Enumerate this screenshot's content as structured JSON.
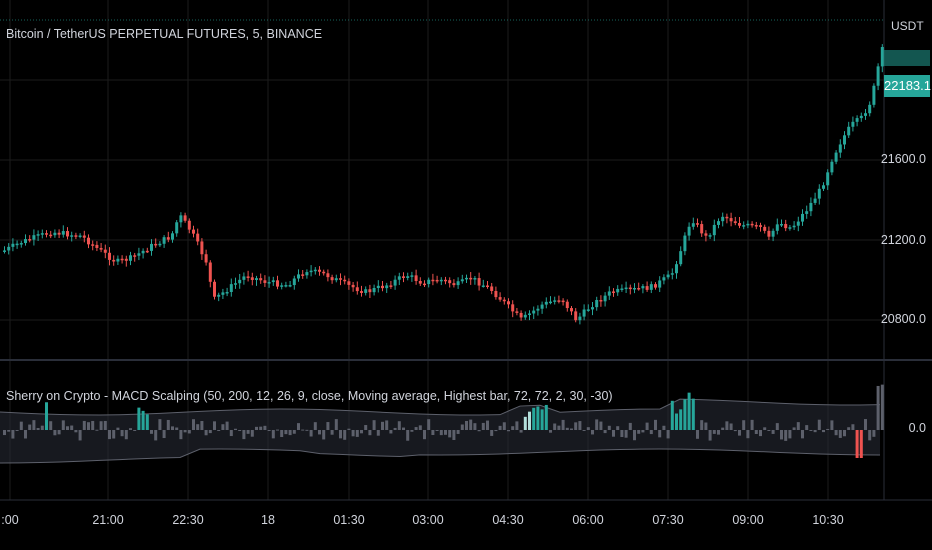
{
  "symbol_title": "Bitcoin / TetherUS PERPETUAL FUTURES, 5, BINANCE",
  "currency": "USDT",
  "last_price": "22183.1",
  "price_axis": [
    "21600.0",
    "21200.0",
    "20800.0"
  ],
  "indicator_title": "Sherry on Crypto - MACD Scalping (50, 200, 12, 26, 9, close, Moving average, Highest bar, 72, 72, 2, 30, -30)",
  "indicator_axis": [
    "0.0"
  ],
  "time_axis": [
    ":00",
    "21:00",
    "22:30",
    "18",
    "01:30",
    "03:00",
    "04:30",
    "06:00",
    "07:30",
    "09:00",
    "10:30"
  ],
  "colors": {
    "up": "#26a69a",
    "down": "#ef5350",
    "background": "#000000",
    "grid": "#1c1c1c",
    "hist_neutral": "#5d606b",
    "hist_highlight": "#b2dfdb"
  }
}
